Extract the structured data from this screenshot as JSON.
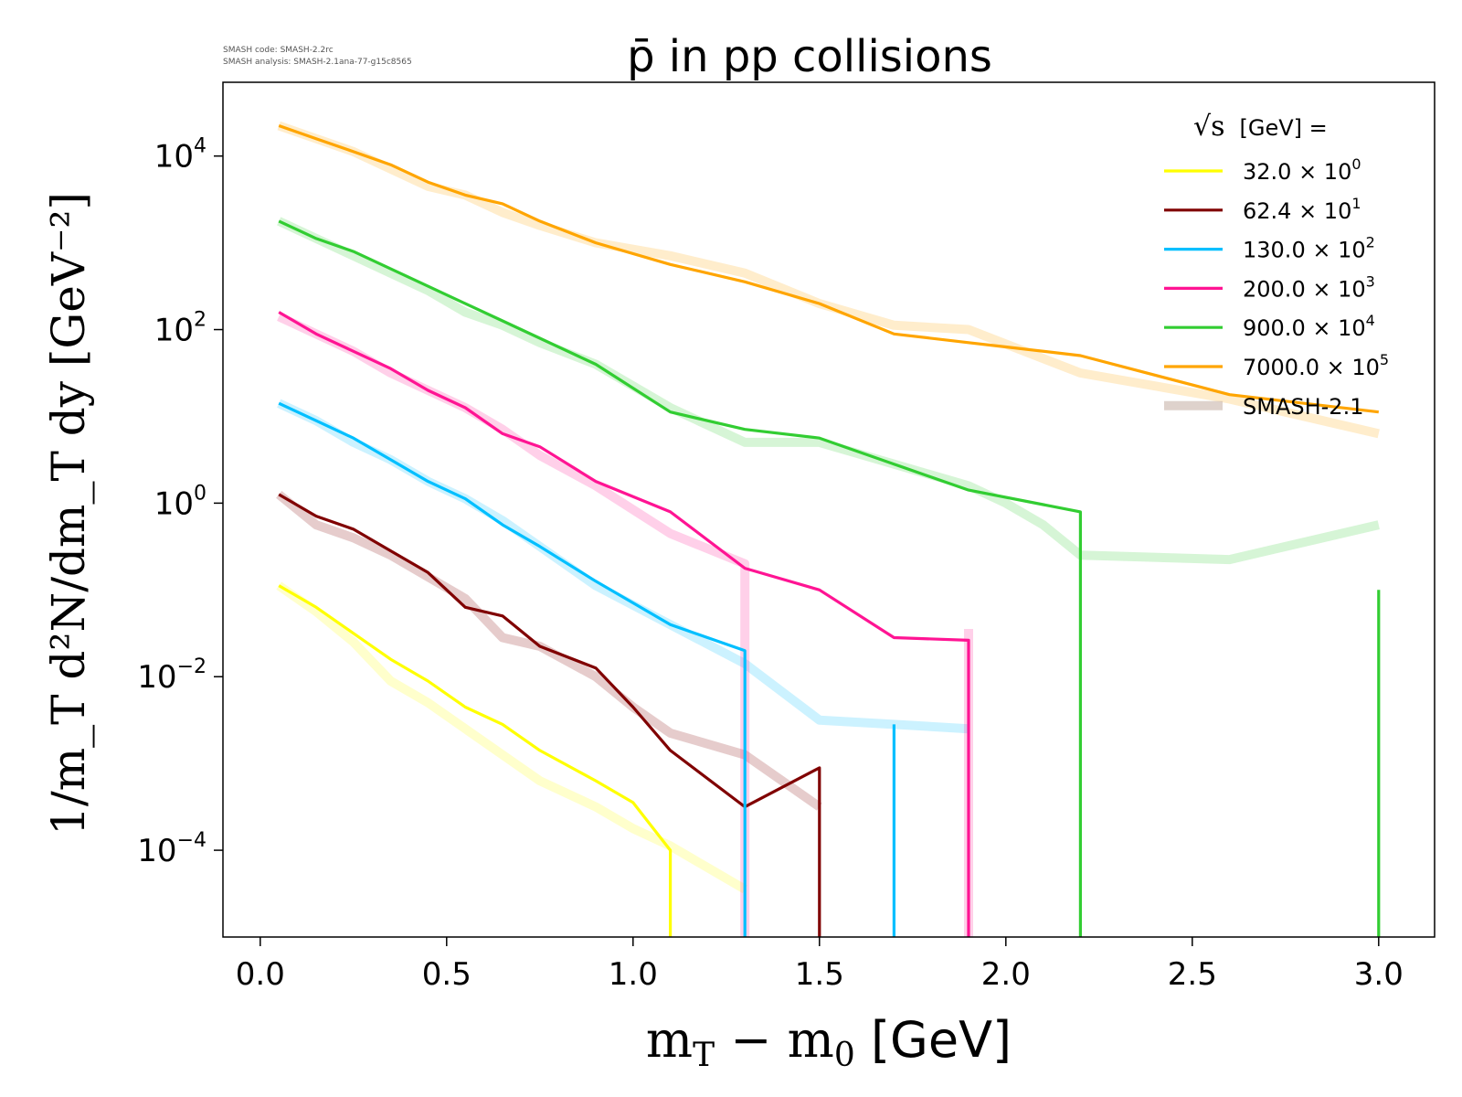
{
  "meta": {
    "code_line": "SMASH code:      SMASH-2.2rc",
    "analysis_line": "SMASH analysis: SMASH-2.1ana-77-g15c8565"
  },
  "chart_data": {
    "type": "line",
    "title": "p̄ in pp collisions",
    "xlabel_main": "m",
    "xlabel_sub1": "T",
    "xlabel_mid": " − m",
    "xlabel_sub2": "0",
    "xlabel_unit": " [GeV]",
    "ylabel": "1/m_T d²N/dm_T dy [GeV⁻²]",
    "y_scale": "log",
    "xlim": [
      -0.1,
      3.15
    ],
    "ylim_log10": [
      -5.0,
      4.85
    ],
    "x_ticks": [
      {
        "value": 0.0,
        "label": "0.0"
      },
      {
        "value": 0.5,
        "label": "0.5"
      },
      {
        "value": 1.0,
        "label": "1.0"
      },
      {
        "value": 1.5,
        "label": "1.5"
      },
      {
        "value": 2.0,
        "label": "2.0"
      },
      {
        "value": 2.5,
        "label": "2.5"
      },
      {
        "value": 3.0,
        "label": "3.0"
      }
    ],
    "y_ticks": [
      {
        "exp": 4,
        "base": "10",
        "sup": "4"
      },
      {
        "exp": 2,
        "base": "10",
        "sup": "2"
      },
      {
        "exp": 0,
        "base": "10",
        "sup": "0"
      },
      {
        "exp": -2,
        "base": "10",
        "sup": "−2"
      },
      {
        "exp": -4,
        "base": "10",
        "sup": "−4"
      }
    ],
    "legend": {
      "position": "top-right",
      "title": "[GeV] =",
      "title_symbol": "√s"
    },
    "series": [
      {
        "name": "32.0 × 10",
        "sup": "0",
        "color": "#ffff00",
        "smash": [
          [
            0.05,
            -0.95
          ],
          [
            0.15,
            -1.25
          ],
          [
            0.25,
            -1.6
          ],
          [
            0.35,
            -2.05
          ],
          [
            0.45,
            -2.3
          ],
          [
            0.55,
            -2.6
          ],
          [
            0.65,
            -2.9
          ],
          [
            0.75,
            -3.2
          ],
          [
            0.9,
            -3.5
          ],
          [
            1.0,
            -3.75
          ],
          [
            1.1,
            -3.95
          ],
          [
            1.2,
            -4.2
          ],
          [
            1.3,
            -4.45
          ]
        ],
        "data": [
          [
            0.05,
            -0.95
          ],
          [
            0.15,
            -1.2
          ],
          [
            0.25,
            -1.5
          ],
          [
            0.35,
            -1.8
          ],
          [
            0.45,
            -2.05
          ],
          [
            0.55,
            -2.35
          ],
          [
            0.65,
            -2.55
          ],
          [
            0.75,
            -2.85
          ],
          [
            0.9,
            -3.2
          ],
          [
            1.0,
            -3.45
          ],
          [
            1.1,
            -4.0
          ],
          [
            1.1,
            -5.0
          ]
        ]
      },
      {
        "name": "62.4 × 10",
        "sup": "1",
        "color": "#800000",
        "smash": [
          [
            0.05,
            0.1
          ],
          [
            0.15,
            -0.25
          ],
          [
            0.25,
            -0.4
          ],
          [
            0.35,
            -0.6
          ],
          [
            0.45,
            -0.85
          ],
          [
            0.55,
            -1.1
          ],
          [
            0.65,
            -1.55
          ],
          [
            0.75,
            -1.65
          ],
          [
            0.9,
            -2.0
          ],
          [
            1.0,
            -2.35
          ],
          [
            1.1,
            -2.65
          ],
          [
            1.3,
            -2.9
          ],
          [
            1.5,
            -3.5
          ]
        ],
        "data": [
          [
            0.05,
            0.1
          ],
          [
            0.15,
            -0.15
          ],
          [
            0.25,
            -0.3
          ],
          [
            0.35,
            -0.55
          ],
          [
            0.45,
            -0.8
          ],
          [
            0.55,
            -1.2
          ],
          [
            0.65,
            -1.3
          ],
          [
            0.75,
            -1.65
          ],
          [
            0.9,
            -1.9
          ],
          [
            1.0,
            -2.35
          ],
          [
            1.1,
            -2.85
          ],
          [
            1.3,
            -3.5
          ],
          [
            1.5,
            -3.05
          ],
          [
            1.5,
            -5.0
          ]
        ]
      },
      {
        "name": "130.0 × 10",
        "sup": "2",
        "color": "#00bfff",
        "smash": [
          [
            0.05,
            1.15
          ],
          [
            0.15,
            0.95
          ],
          [
            0.25,
            0.7
          ],
          [
            0.35,
            0.5
          ],
          [
            0.45,
            0.25
          ],
          [
            0.55,
            0.05
          ],
          [
            0.65,
            -0.2
          ],
          [
            0.75,
            -0.5
          ],
          [
            0.9,
            -0.95
          ],
          [
            1.1,
            -1.4
          ],
          [
            1.3,
            -1.85
          ],
          [
            1.5,
            -2.5
          ],
          [
            1.7,
            -2.55
          ],
          [
            1.9,
            -2.6
          ]
        ],
        "data": [
          [
            0.05,
            1.15
          ],
          [
            0.15,
            0.95
          ],
          [
            0.25,
            0.75
          ],
          [
            0.35,
            0.5
          ],
          [
            0.45,
            0.25
          ],
          [
            0.55,
            0.05
          ],
          [
            0.65,
            -0.25
          ],
          [
            0.75,
            -0.5
          ],
          [
            0.9,
            -0.9
          ],
          [
            1.1,
            -1.4
          ],
          [
            1.3,
            -1.7
          ],
          [
            1.3,
            -5.0
          ]
        ],
        "spikes": [
          [
            1.7,
            -2.55
          ]
        ]
      },
      {
        "name": "200.0 × 10",
        "sup": "3",
        "color": "#ff1493",
        "smash": [
          [
            0.05,
            2.15
          ],
          [
            0.15,
            1.95
          ],
          [
            0.25,
            1.75
          ],
          [
            0.35,
            1.5
          ],
          [
            0.45,
            1.3
          ],
          [
            0.55,
            1.1
          ],
          [
            0.65,
            0.85
          ],
          [
            0.75,
            0.55
          ],
          [
            0.9,
            0.2
          ],
          [
            1.1,
            -0.35
          ],
          [
            1.3,
            -0.7
          ],
          [
            1.3,
            -5.0
          ]
        ],
        "data": [
          [
            0.05,
            2.2
          ],
          [
            0.15,
            1.95
          ],
          [
            0.25,
            1.75
          ],
          [
            0.35,
            1.55
          ],
          [
            0.45,
            1.3
          ],
          [
            0.55,
            1.1
          ],
          [
            0.65,
            0.8
          ],
          [
            0.75,
            0.65
          ],
          [
            0.9,
            0.25
          ],
          [
            1.1,
            -0.1
          ],
          [
            1.3,
            -0.75
          ],
          [
            1.5,
            -1.0
          ],
          [
            1.7,
            -1.55
          ],
          [
            1.9,
            -1.58
          ],
          [
            1.9,
            -5.0
          ]
        ],
        "smash_spikes": [
          [
            1.9,
            -1.45
          ]
        ]
      },
      {
        "name": "900.0 × 10",
        "sup": "4",
        "color": "#32cd32",
        "smash": [
          [
            0.05,
            3.25
          ],
          [
            0.15,
            3.05
          ],
          [
            0.25,
            2.85
          ],
          [
            0.35,
            2.65
          ],
          [
            0.45,
            2.45
          ],
          [
            0.55,
            2.2
          ],
          [
            0.65,
            2.05
          ],
          [
            0.75,
            1.85
          ],
          [
            0.9,
            1.6
          ],
          [
            1.1,
            1.1
          ],
          [
            1.3,
            0.7
          ],
          [
            1.5,
            0.7
          ],
          [
            1.7,
            0.45
          ],
          [
            1.9,
            0.2
          ],
          [
            2.0,
            0.0
          ],
          [
            2.1,
            -0.25
          ],
          [
            2.2,
            -0.6
          ],
          [
            2.6,
            -0.65
          ],
          [
            3.0,
            -0.25
          ]
        ],
        "data": [
          [
            0.05,
            3.25
          ],
          [
            0.15,
            3.05
          ],
          [
            0.25,
            2.9
          ],
          [
            0.35,
            2.7
          ],
          [
            0.45,
            2.5
          ],
          [
            0.55,
            2.3
          ],
          [
            0.65,
            2.1
          ],
          [
            0.75,
            1.9
          ],
          [
            0.9,
            1.6
          ],
          [
            1.1,
            1.05
          ],
          [
            1.3,
            0.85
          ],
          [
            1.5,
            0.75
          ],
          [
            1.7,
            0.45
          ],
          [
            1.9,
            0.15
          ],
          [
            2.2,
            -0.1
          ],
          [
            2.2,
            -5.0
          ]
        ],
        "spikes": [
          [
            3.0,
            -1.0
          ]
        ]
      },
      {
        "name": "7000.0 × 10",
        "sup": "5",
        "color": "#ffa500",
        "smash": [
          [
            0.05,
            4.35
          ],
          [
            0.15,
            4.2
          ],
          [
            0.25,
            4.05
          ],
          [
            0.35,
            3.85
          ],
          [
            0.45,
            3.65
          ],
          [
            0.55,
            3.55
          ],
          [
            0.65,
            3.35
          ],
          [
            0.75,
            3.2
          ],
          [
            0.9,
            3.0
          ],
          [
            1.1,
            2.85
          ],
          [
            1.3,
            2.65
          ],
          [
            1.5,
            2.3
          ],
          [
            1.7,
            2.05
          ],
          [
            1.9,
            2.0
          ],
          [
            2.2,
            1.5
          ],
          [
            2.6,
            1.2
          ],
          [
            3.0,
            0.8
          ]
        ],
        "data": [
          [
            0.05,
            4.35
          ],
          [
            0.15,
            4.2
          ],
          [
            0.25,
            4.05
          ],
          [
            0.35,
            3.9
          ],
          [
            0.45,
            3.7
          ],
          [
            0.55,
            3.55
          ],
          [
            0.65,
            3.45
          ],
          [
            0.75,
            3.25
          ],
          [
            0.9,
            3.0
          ],
          [
            1.1,
            2.75
          ],
          [
            1.3,
            2.55
          ],
          [
            1.5,
            2.3
          ],
          [
            1.7,
            1.95
          ],
          [
            1.9,
            1.85
          ],
          [
            2.0,
            1.8
          ],
          [
            2.2,
            1.7
          ],
          [
            2.6,
            1.25
          ],
          [
            3.0,
            1.05
          ]
        ]
      }
    ],
    "smash_label": "SMASH-2.1",
    "smash_color": "#c8b4aa"
  }
}
